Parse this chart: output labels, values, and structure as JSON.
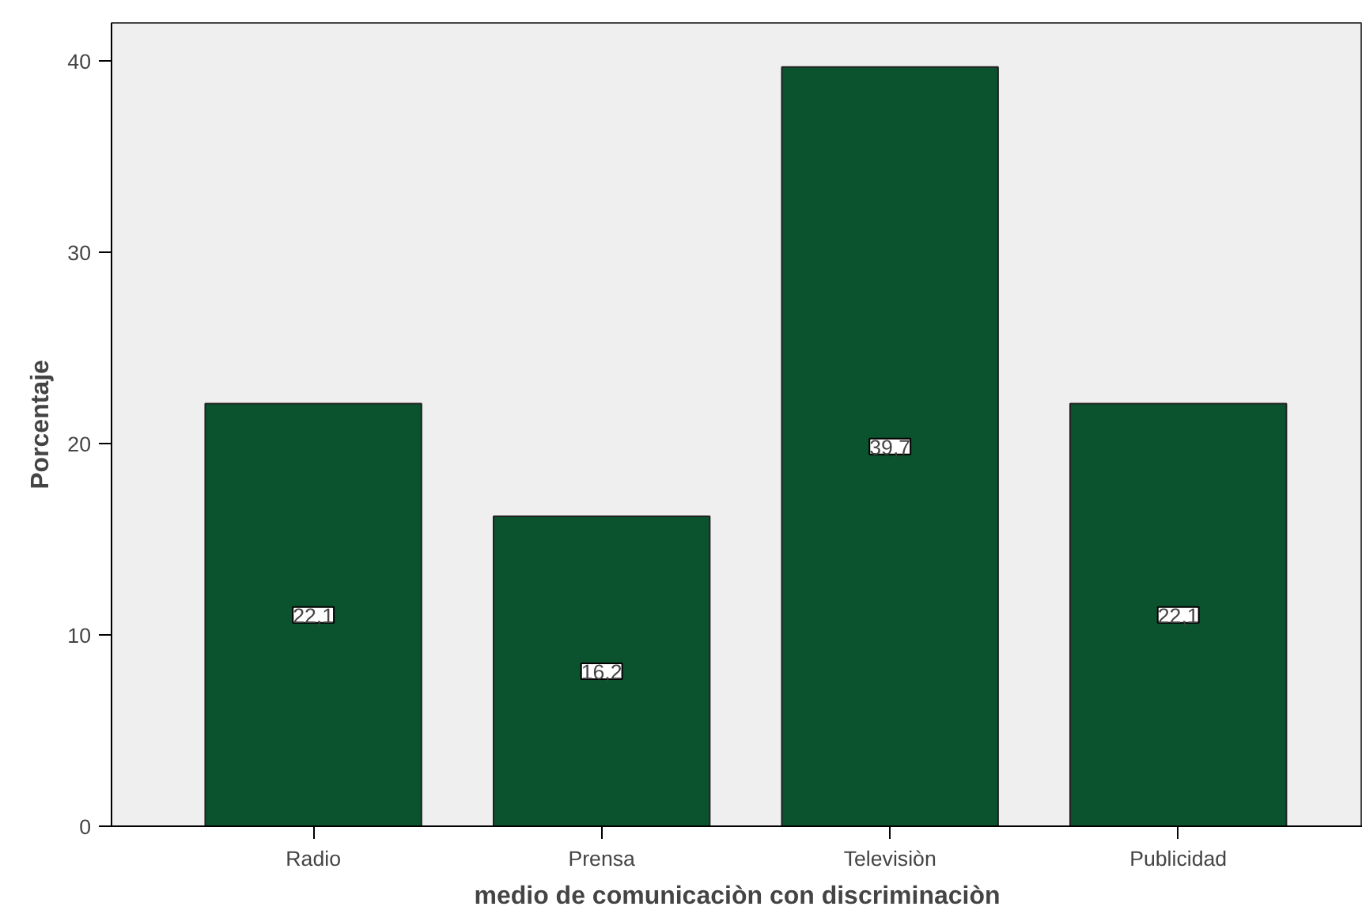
{
  "chart_data": {
    "type": "bar",
    "xlabel": "medio de comunicaciòn con discriminaciòn",
    "ylabel": "Porcentaje",
    "categories": [
      "Radio",
      "Prensa",
      "Televisiòn",
      "Publicidad"
    ],
    "values": [
      22.1,
      16.2,
      39.7,
      22.1
    ],
    "color": "#0b532e",
    "ylim": [
      0,
      42
    ],
    "yticks": [
      0,
      10,
      20,
      30,
      40
    ],
    "data_labels": true,
    "value_labels": [
      "22,1",
      "16,2",
      "39,7",
      "22,1"
    ],
    "grid": false
  }
}
